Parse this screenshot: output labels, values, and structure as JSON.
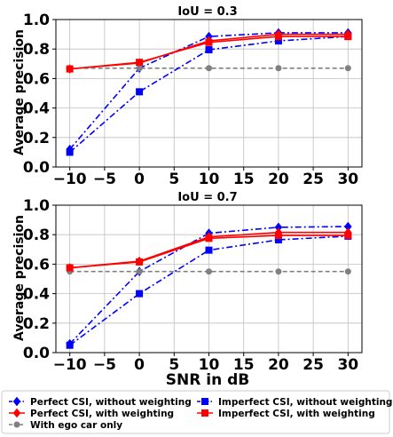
{
  "chart_data": [
    {
      "type": "line",
      "title": "IoU = 0.3",
      "xlabel": "",
      "ylabel": "Average precision",
      "x": [
        -10,
        0,
        10,
        20,
        30
      ],
      "xticks": [
        "−10",
        "−5",
        "0",
        "5",
        "10",
        "15",
        "20",
        "25",
        "30"
      ],
      "yticks": [
        "0.0",
        "0.2",
        "0.4",
        "0.6",
        "0.8",
        "1.0"
      ],
      "xlim": [
        -12,
        32
      ],
      "ylim": [
        0,
        1.0
      ],
      "grid": true,
      "series": [
        {
          "name": "Perfect CSI, without weighting",
          "values": [
            0.12,
            0.67,
            0.885,
            0.91,
            0.91
          ],
          "color": "#0000ff",
          "marker": "diamond",
          "dash": "dashdot"
        },
        {
          "name": "Perfect CSI, with weighting",
          "values": [
            0.665,
            0.705,
            0.855,
            0.9,
            0.9
          ],
          "color": "#ff0000",
          "marker": "diamond",
          "dash": "solid"
        },
        {
          "name": "With ego car only",
          "values": [
            0.67,
            0.67,
            0.67,
            0.67,
            0.67
          ],
          "color": "#808080",
          "marker": "circle",
          "dash": "dashed"
        },
        {
          "name": "Imperfect CSI, without weighting",
          "values": [
            0.1,
            0.51,
            0.795,
            0.855,
            0.885
          ],
          "color": "#0000ff",
          "marker": "square",
          "dash": "dashdot"
        },
        {
          "name": "Imperfect CSI, with weighting",
          "values": [
            0.665,
            0.71,
            0.845,
            0.885,
            0.885
          ],
          "color": "#ff0000",
          "marker": "square",
          "dash": "solid"
        }
      ]
    },
    {
      "type": "line",
      "title": "IoU = 0.7",
      "xlabel": "SNR in dB",
      "ylabel": "Average precision",
      "x": [
        -10,
        0,
        10,
        20,
        30
      ],
      "xticks": [
        "−10",
        "−5",
        "0",
        "5",
        "10",
        "15",
        "20",
        "25",
        "30"
      ],
      "yticks": [
        "0.0",
        "0.2",
        "0.4",
        "0.6",
        "0.8",
        "1.0"
      ],
      "xlim": [
        -12,
        32
      ],
      "ylim": [
        0,
        1.0
      ],
      "grid": true,
      "series": [
        {
          "name": "Perfect CSI, without weighting",
          "values": [
            0.06,
            0.55,
            0.81,
            0.85,
            0.855
          ],
          "color": "#0000ff",
          "marker": "diamond",
          "dash": "dashdot"
        },
        {
          "name": "Perfect CSI, with weighting",
          "values": [
            0.575,
            0.62,
            0.785,
            0.815,
            0.815
          ],
          "color": "#ff0000",
          "marker": "diamond",
          "dash": "solid"
        },
        {
          "name": "With ego car only",
          "values": [
            0.55,
            0.55,
            0.55,
            0.55,
            0.55
          ],
          "color": "#808080",
          "marker": "circle",
          "dash": "dashed"
        },
        {
          "name": "Imperfect CSI, without weighting",
          "values": [
            0.05,
            0.4,
            0.695,
            0.765,
            0.79
          ],
          "color": "#0000ff",
          "marker": "square",
          "dash": "dashdot"
        },
        {
          "name": "Imperfect CSI, with weighting",
          "values": [
            0.575,
            0.615,
            0.775,
            0.795,
            0.795
          ],
          "color": "#ff0000",
          "marker": "square",
          "dash": "solid"
        }
      ]
    }
  ],
  "legend": {
    "placement": "bottom",
    "items": [
      {
        "label": "Perfect CSI, without weighting",
        "color": "#0000ff",
        "marker": "diamond",
        "dash": "dashdot"
      },
      {
        "label": "Imperfect CSI, without weighting",
        "color": "#0000ff",
        "marker": "square",
        "dash": "dashdot"
      },
      {
        "label": "Perfect CSI, with weighting",
        "color": "#ff0000",
        "marker": "diamond",
        "dash": "solid"
      },
      {
        "label": "Imperfect CSI, with weighting",
        "color": "#ff0000",
        "marker": "square",
        "dash": "solid"
      },
      {
        "label": "With ego car only",
        "color": "#808080",
        "marker": "circle",
        "dash": "dashed"
      }
    ]
  }
}
